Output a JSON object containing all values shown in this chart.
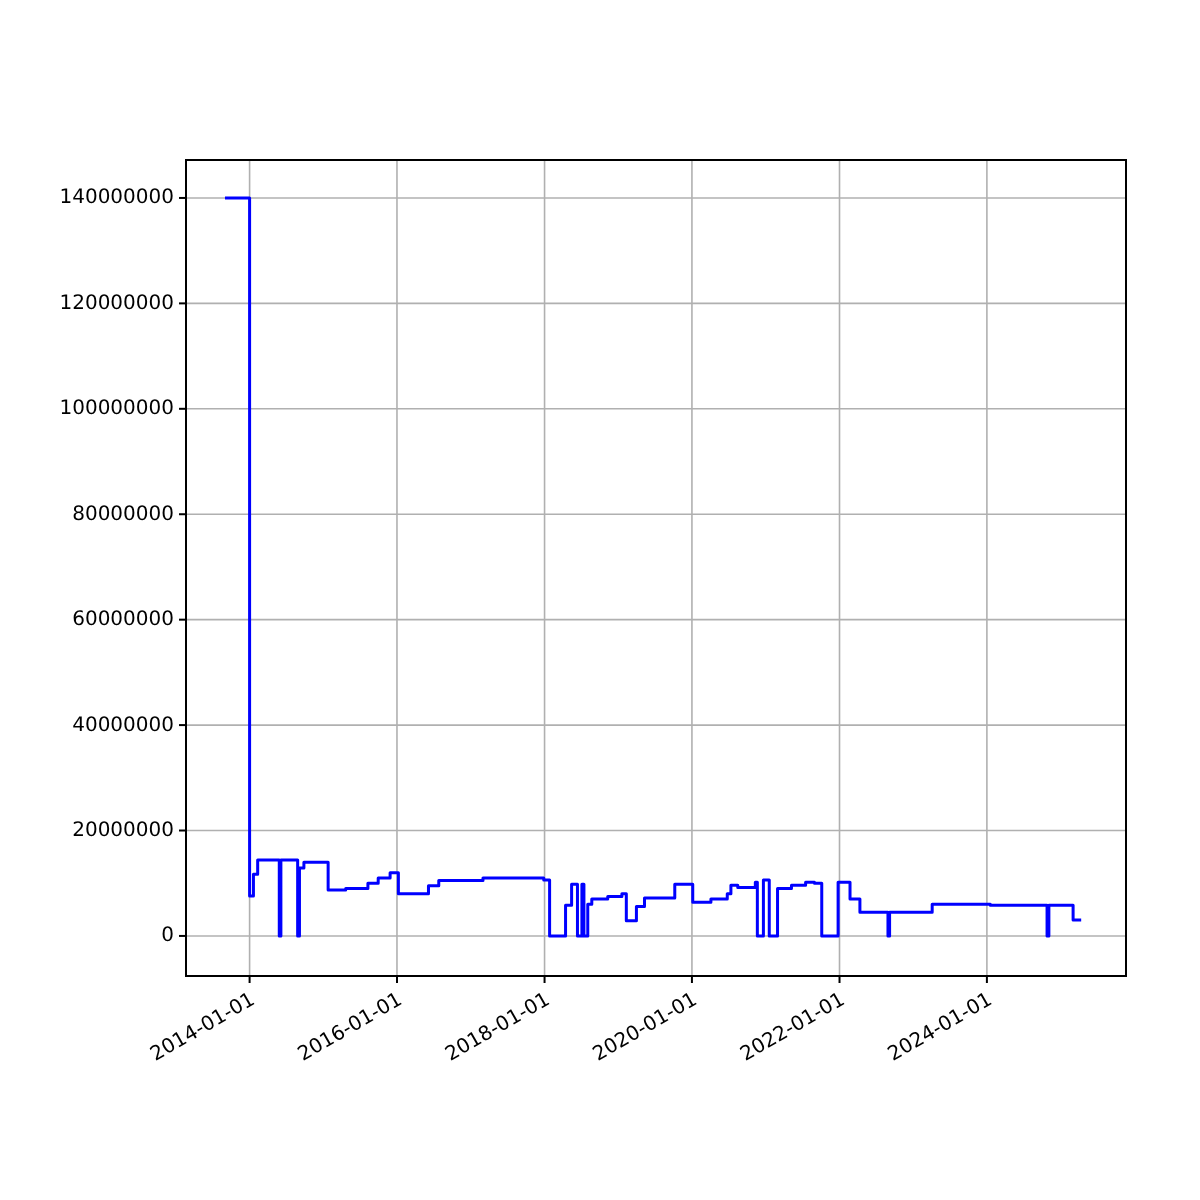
{
  "chart_data": {
    "type": "step",
    "x": [
      "2013-09-01",
      "2014-01-01",
      "2014-01-20",
      "2014-02-10",
      "2014-05-28",
      "2014-06-05",
      "2014-08-27",
      "2014-09-05",
      "2014-09-27",
      "2015-01-15",
      "2015-01-25",
      "2015-04-22",
      "2015-08-10",
      "2015-09-30",
      "2015-11-28",
      "2016-01-08",
      "2016-06-05",
      "2016-07-26",
      "2017-03-02",
      "2017-12-28",
      "2018-01-26",
      "2018-04-15",
      "2018-05-15",
      "2018-06-13",
      "2018-07-05",
      "2018-07-15",
      "2018-08-03",
      "2018-08-23",
      "2018-11-10",
      "2019-01-19",
      "2019-02-10",
      "2019-04-01",
      "2019-05-11",
      "2019-10-08",
      "2020-01-05",
      "2020-04-04",
      "2020-06-24",
      "2020-07-12",
      "2020-08-15",
      "2020-11-10",
      "2020-11-20",
      "2020-12-20",
      "2021-01-18",
      "2021-02-28",
      "2021-05-08",
      "2021-07-17",
      "2021-08-30",
      "2021-10-05",
      "2021-12-25",
      "2022-02-22",
      "2022-04-12",
      "2022-08-29",
      "2022-09-06",
      "2023-04-05",
      "2024-01-18",
      "2024-10-25",
      "2024-11-03",
      "2025-03-03",
      "2025-04-12"
    ],
    "series": [
      {
        "color": "#0000ff",
        "values": [
          140000000,
          7600000,
          11700000,
          14400000,
          0,
          14400000,
          0,
          12900000,
          14000000,
          14000000,
          8700000,
          9000000,
          10000000,
          11000000,
          12000000,
          8000000,
          9500000,
          10500000,
          11000000,
          10600000,
          0,
          5800000,
          9800000,
          0,
          9800000,
          0,
          6000000,
          7000000,
          7500000,
          8000000,
          2900000,
          5600000,
          7200000,
          9800000,
          6400000,
          7000000,
          8000000,
          9600000,
          9200000,
          10200000,
          0,
          10600000,
          0,
          9000000,
          9600000,
          10200000,
          10000000,
          0,
          10200000,
          7000000,
          4500000,
          0,
          4500000,
          6000000,
          5800000,
          0,
          5800000,
          3000000,
          3000000
        ]
      }
    ],
    "xlim": [
      "2013-02-20",
      "2025-11-20"
    ],
    "xticks": [
      "2014-01-01",
      "2016-01-01",
      "2018-01-01",
      "2020-01-01",
      "2022-01-01",
      "2024-01-01"
    ],
    "ylim": [
      -7600000,
      147200000
    ],
    "yticks": [
      0,
      20000000,
      40000000,
      60000000,
      80000000,
      100000000,
      120000000,
      140000000
    ],
    "grid": true
  }
}
